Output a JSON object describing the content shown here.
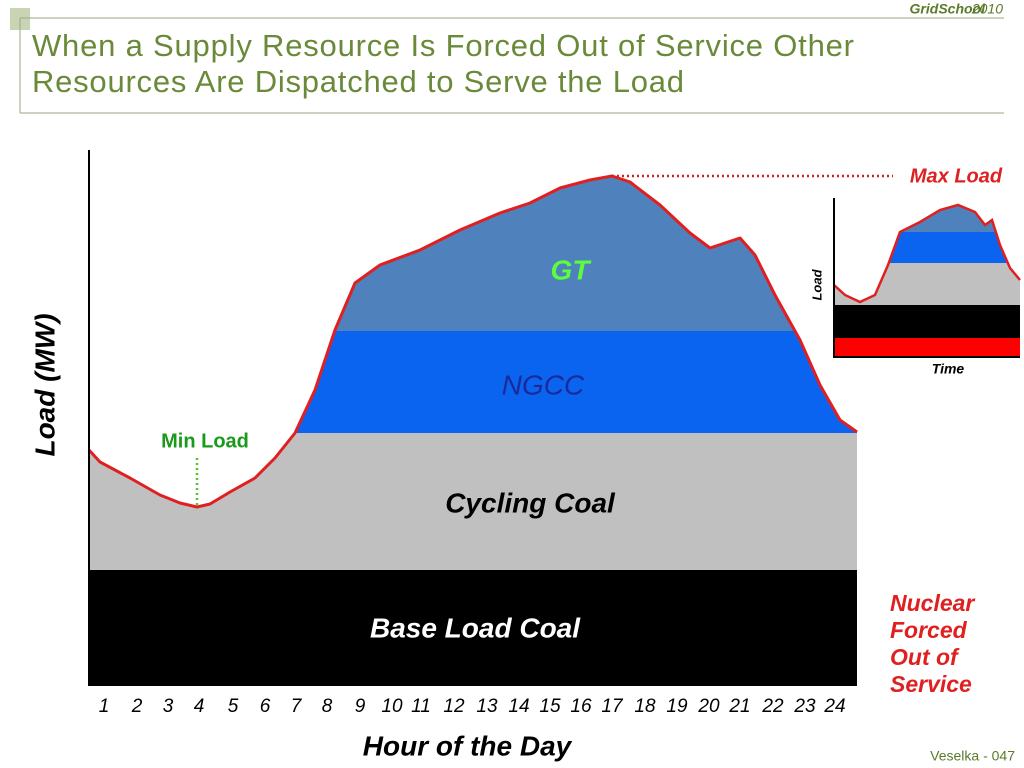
{
  "header": {
    "brand": "GridSchool",
    "year": "2010",
    "title_lines": [
      "When a Supply Resource Is Forced Out of Service Other",
      "Resources Are Dispatched to Serve the Load"
    ]
  },
  "diagram": {
    "y_axis_label": "Load (MW)",
    "x_axis_label": "Hour of the Day",
    "hours": [
      "1",
      "2",
      "3",
      "4",
      "5",
      "6",
      "7",
      "8",
      "9",
      "10",
      "11",
      "12",
      "13",
      "14",
      "15",
      "16",
      "17",
      "18",
      "19",
      "20",
      "21",
      "22",
      "23",
      "24"
    ],
    "layers": [
      "GT",
      "NGCC",
      "Cycling Coal",
      "Base Load Coal"
    ],
    "min_label": "Min Load",
    "max_label": "Max Load",
    "note_lines": [
      "Nuclear",
      "Forced",
      "Out of",
      "Service"
    ]
  },
  "inset": {
    "y_label": "Load",
    "x_label": "Time"
  },
  "footer": "Veselka  - 047"
}
